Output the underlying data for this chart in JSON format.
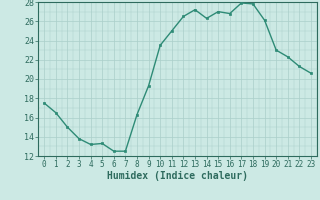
{
  "x": [
    0,
    1,
    2,
    3,
    4,
    5,
    6,
    7,
    8,
    9,
    10,
    11,
    12,
    13,
    14,
    15,
    16,
    17,
    18,
    19,
    20,
    21,
    22,
    23
  ],
  "y": [
    17.5,
    16.5,
    15.0,
    13.8,
    13.2,
    13.3,
    12.5,
    12.5,
    16.3,
    19.3,
    23.5,
    25.0,
    26.5,
    27.2,
    26.3,
    27.0,
    26.8,
    27.9,
    27.8,
    26.1,
    23.0,
    22.3,
    21.3,
    20.6
  ],
  "line_color": "#2e8b76",
  "marker": "s",
  "marker_size": 2.0,
  "bg_color": "#cce9e4",
  "grid_color_major": "#aacfca",
  "xlabel": "Humidex (Indice chaleur)",
  "xlabel_fontsize": 7,
  "ylim": [
    12,
    28
  ],
  "xlim": [
    -0.5,
    23.5
  ],
  "yticks": [
    12,
    14,
    16,
    18,
    20,
    22,
    24,
    26,
    28
  ],
  "xticks": [
    0,
    1,
    2,
    3,
    4,
    5,
    6,
    7,
    8,
    9,
    10,
    11,
    12,
    13,
    14,
    15,
    16,
    17,
    18,
    19,
    20,
    21,
    22,
    23
  ],
  "tick_fontsize": 5.5,
  "line_width": 1.0,
  "tick_color": "#2e6b5e",
  "spine_color": "#2e6b5e"
}
